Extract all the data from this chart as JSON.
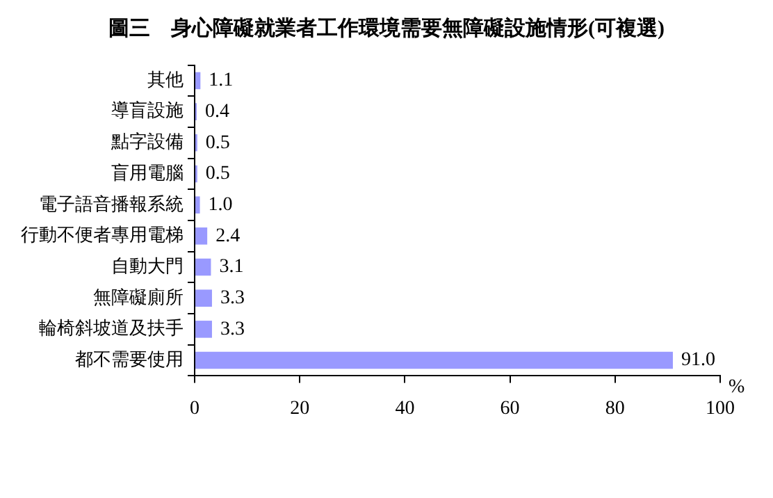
{
  "chart_data": {
    "type": "bar",
    "orientation": "horizontal",
    "title": "圖三　身心障礙就業者工作環境需要無障礙設施情形(可複選)",
    "xlabel": "%",
    "categories": [
      "其他",
      "導盲設施",
      "點字設備",
      "盲用電腦",
      "電子語音播報系統",
      "行動不便者專用電梯",
      "自動大門",
      "無障礙廁所",
      "輪椅斜坡道及扶手",
      "都不需要使用"
    ],
    "values": [
      1.1,
      0.4,
      0.5,
      0.5,
      1.0,
      2.4,
      3.1,
      3.3,
      3.3,
      91.0
    ],
    "value_labels": [
      "1.1",
      "0.4",
      "0.5",
      "0.5",
      "1.0",
      "2.4",
      "3.1",
      "3.3",
      "3.3",
      "91.0"
    ],
    "color": "#9999ff",
    "xlim": [
      0,
      100
    ],
    "xticks": [
      0,
      20,
      40,
      60,
      80,
      100
    ],
    "grid": false,
    "legend": false
  }
}
